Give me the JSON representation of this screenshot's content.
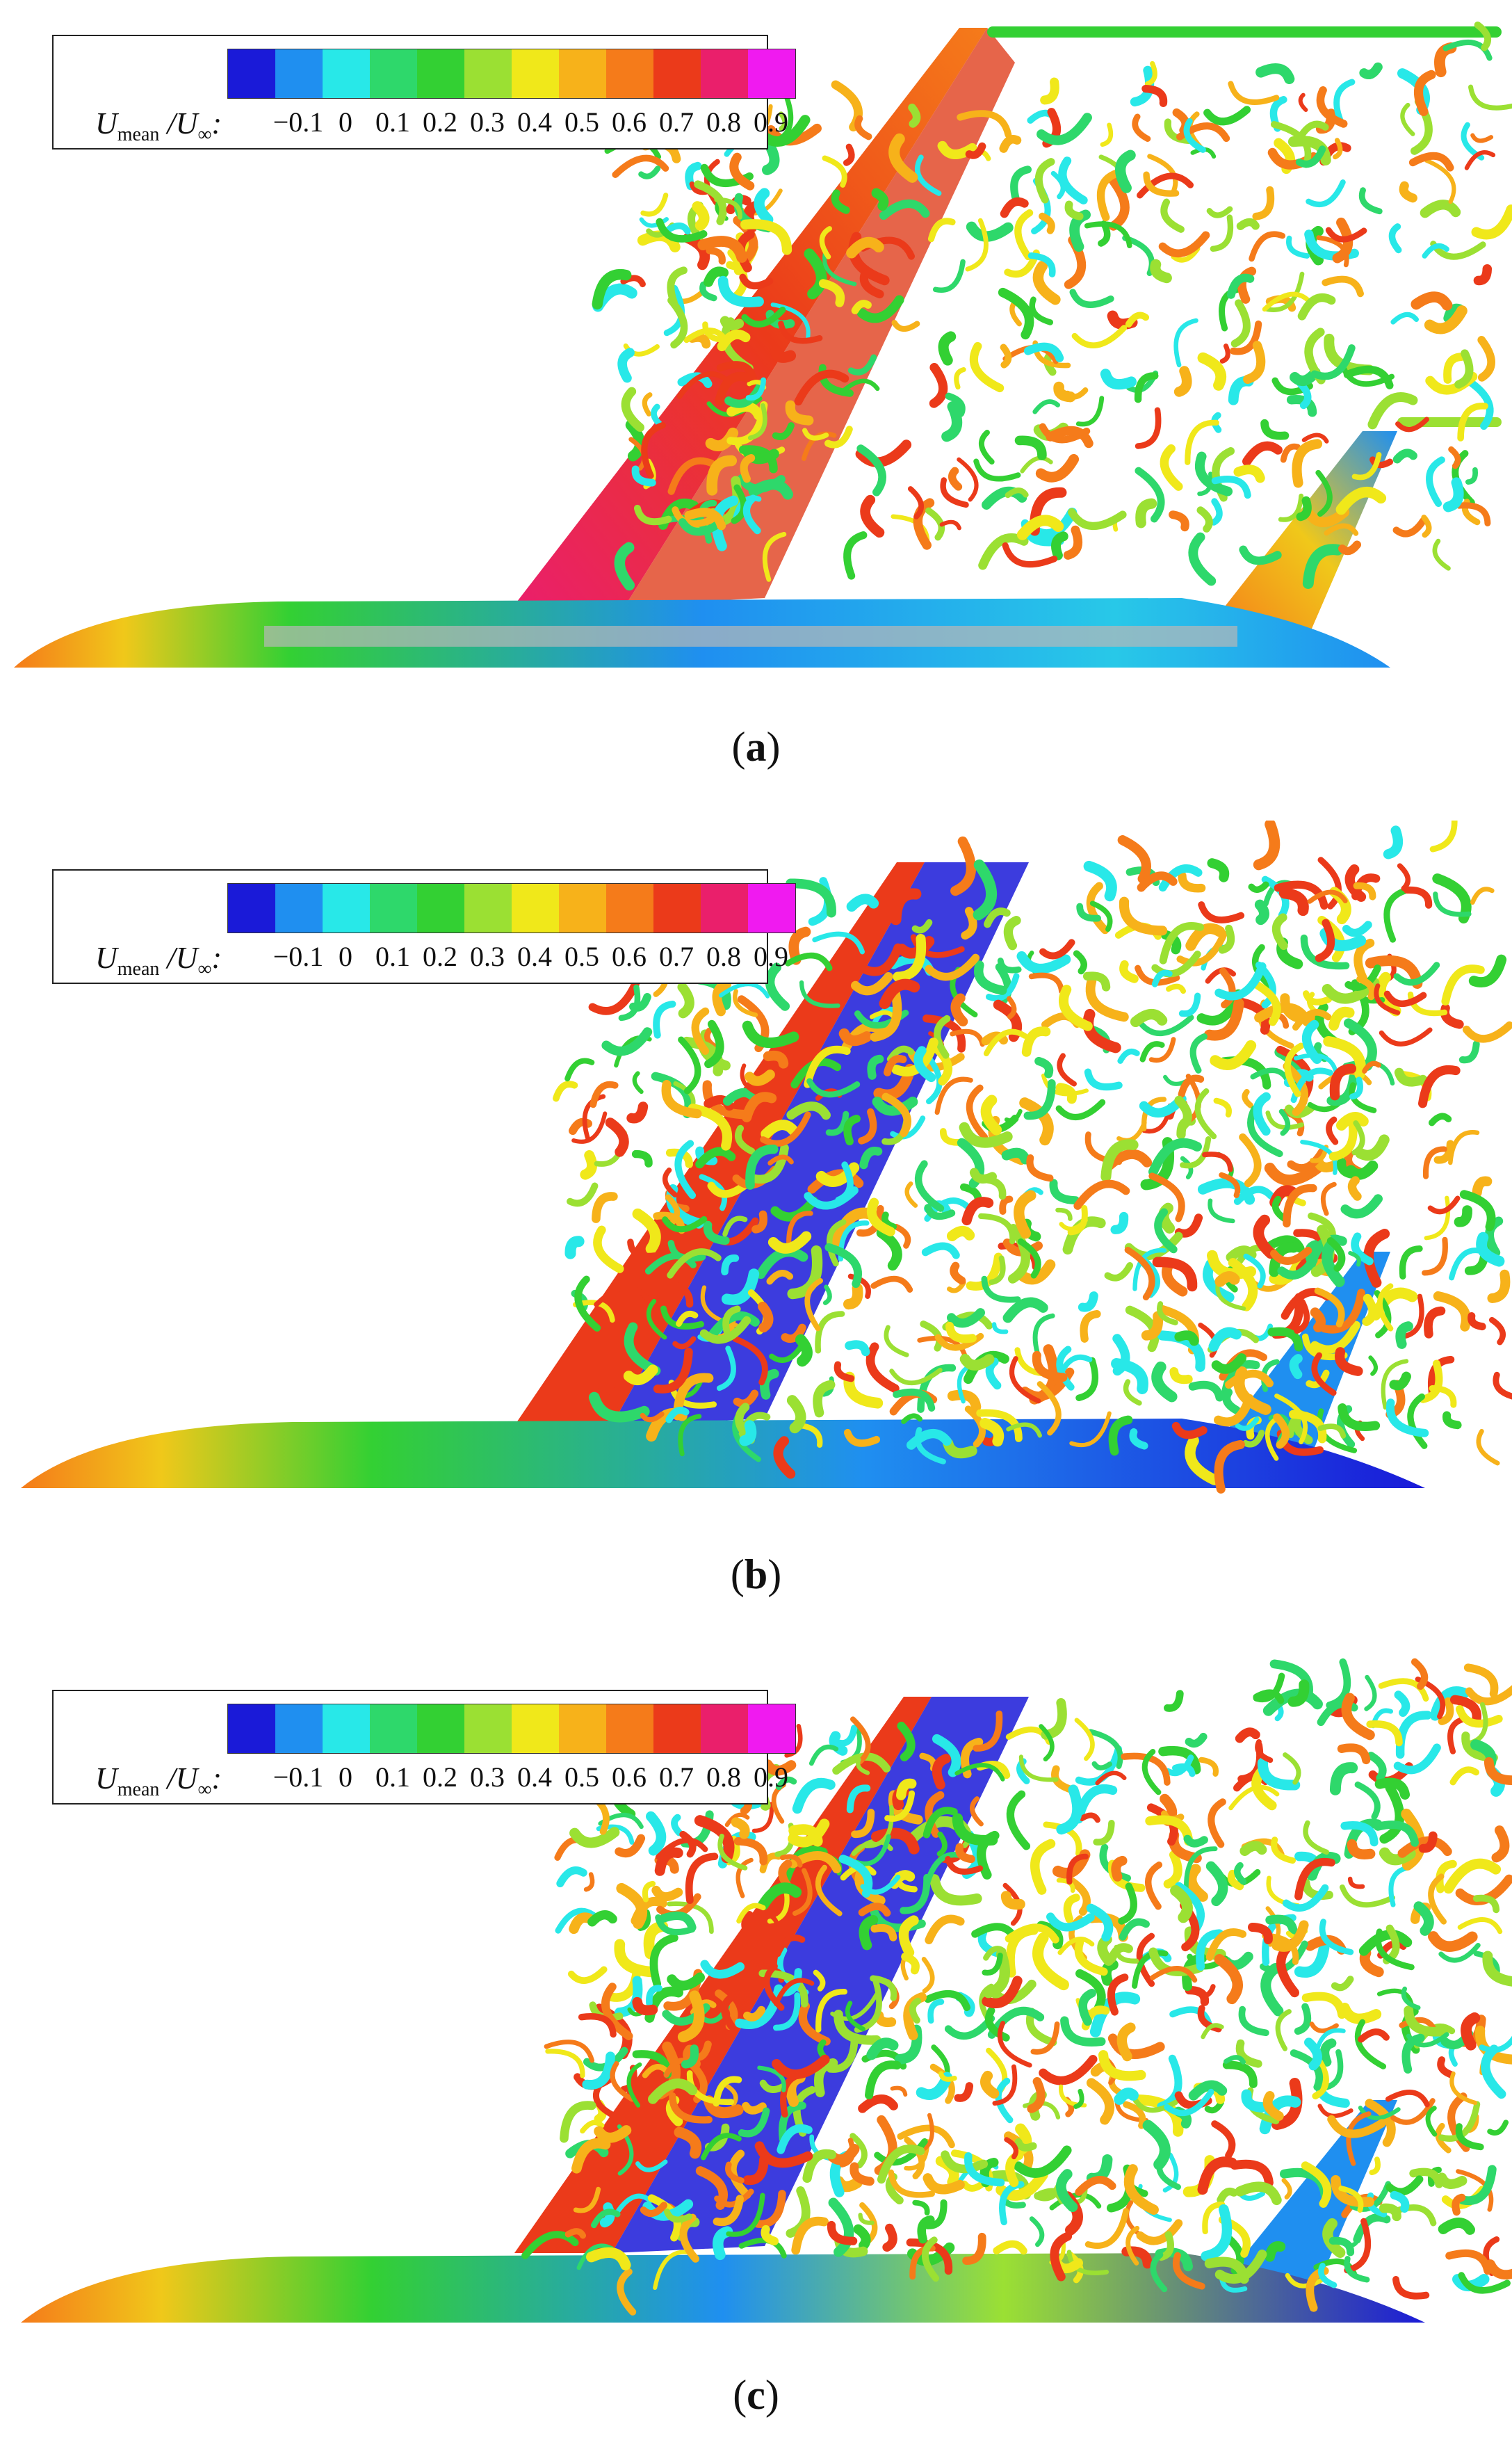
{
  "legend": {
    "variable": "U",
    "variable_sub": "mean",
    "denominator": "U",
    "denominator_sub": "∞",
    "ticks": [
      "−0.1",
      "0",
      "0.1",
      "0.2",
      "0.3",
      "0.4",
      "0.5",
      "0.6",
      "0.7",
      "0.8",
      "0.9"
    ],
    "colors": [
      "#1a1ad8",
      "#1f8ff0",
      "#28e8e8",
      "#2ed86b",
      "#33d033",
      "#9be033",
      "#f0e81a",
      "#f7b21a",
      "#f57b1a",
      "#eb3a1a",
      "#ea1f6b",
      "#f01af0"
    ]
  },
  "panels": [
    {
      "caption_open": "(",
      "caption_letter": "a",
      "caption_close": ")"
    },
    {
      "caption_open": "(",
      "caption_letter": "b",
      "caption_close": ")"
    },
    {
      "caption_open": "(",
      "caption_letter": "c",
      "caption_close": ")"
    }
  ]
}
